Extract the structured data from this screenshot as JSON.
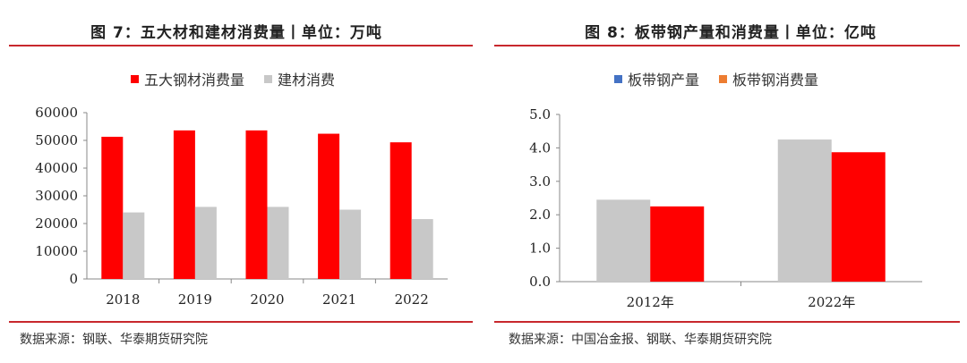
{
  "left": {
    "title": "图 7：五大材和建材消费量丨单位：万吨",
    "source": "数据来源：钢联、华泰期货研究院",
    "chart_data": {
      "type": "bar",
      "categories": [
        "2018",
        "2019",
        "2020",
        "2021",
        "2022"
      ],
      "series": [
        {
          "name": "五大钢材消费量",
          "color": "#ff0000",
          "values": [
            51300,
            53600,
            53600,
            52400,
            49300
          ]
        },
        {
          "name": "建材消费",
          "color": "#c8c8c8",
          "values": [
            24000,
            26000,
            26000,
            25000,
            21600
          ]
        }
      ],
      "ylim": [
        0,
        60000
      ],
      "yticks": [
        "0",
        "10000",
        "20000",
        "30000",
        "40000",
        "50000",
        "60000"
      ],
      "grid": false,
      "legend": "top"
    }
  },
  "right": {
    "title": "图 8：板带钢产量和消费量丨单位：亿吨",
    "source": "数据来源：中国冶金报、钢联、华泰期货研究院",
    "chart_data": {
      "type": "bar",
      "categories": [
        "2012年",
        "2022年"
      ],
      "series": [
        {
          "name": "板带钢产量",
          "color": "#c8c8c8",
          "legend_color": "#4472c4",
          "values": [
            2.45,
            4.25
          ]
        },
        {
          "name": "板带钢消费量",
          "color": "#ff0000",
          "legend_color": "#ed7d31",
          "values": [
            2.25,
            3.87
          ]
        }
      ],
      "ylim": [
        0,
        5.0
      ],
      "yticks": [
        "0.0",
        "1.0",
        "2.0",
        "3.0",
        "4.0",
        "5.0"
      ],
      "grid": false,
      "legend": "top"
    }
  }
}
